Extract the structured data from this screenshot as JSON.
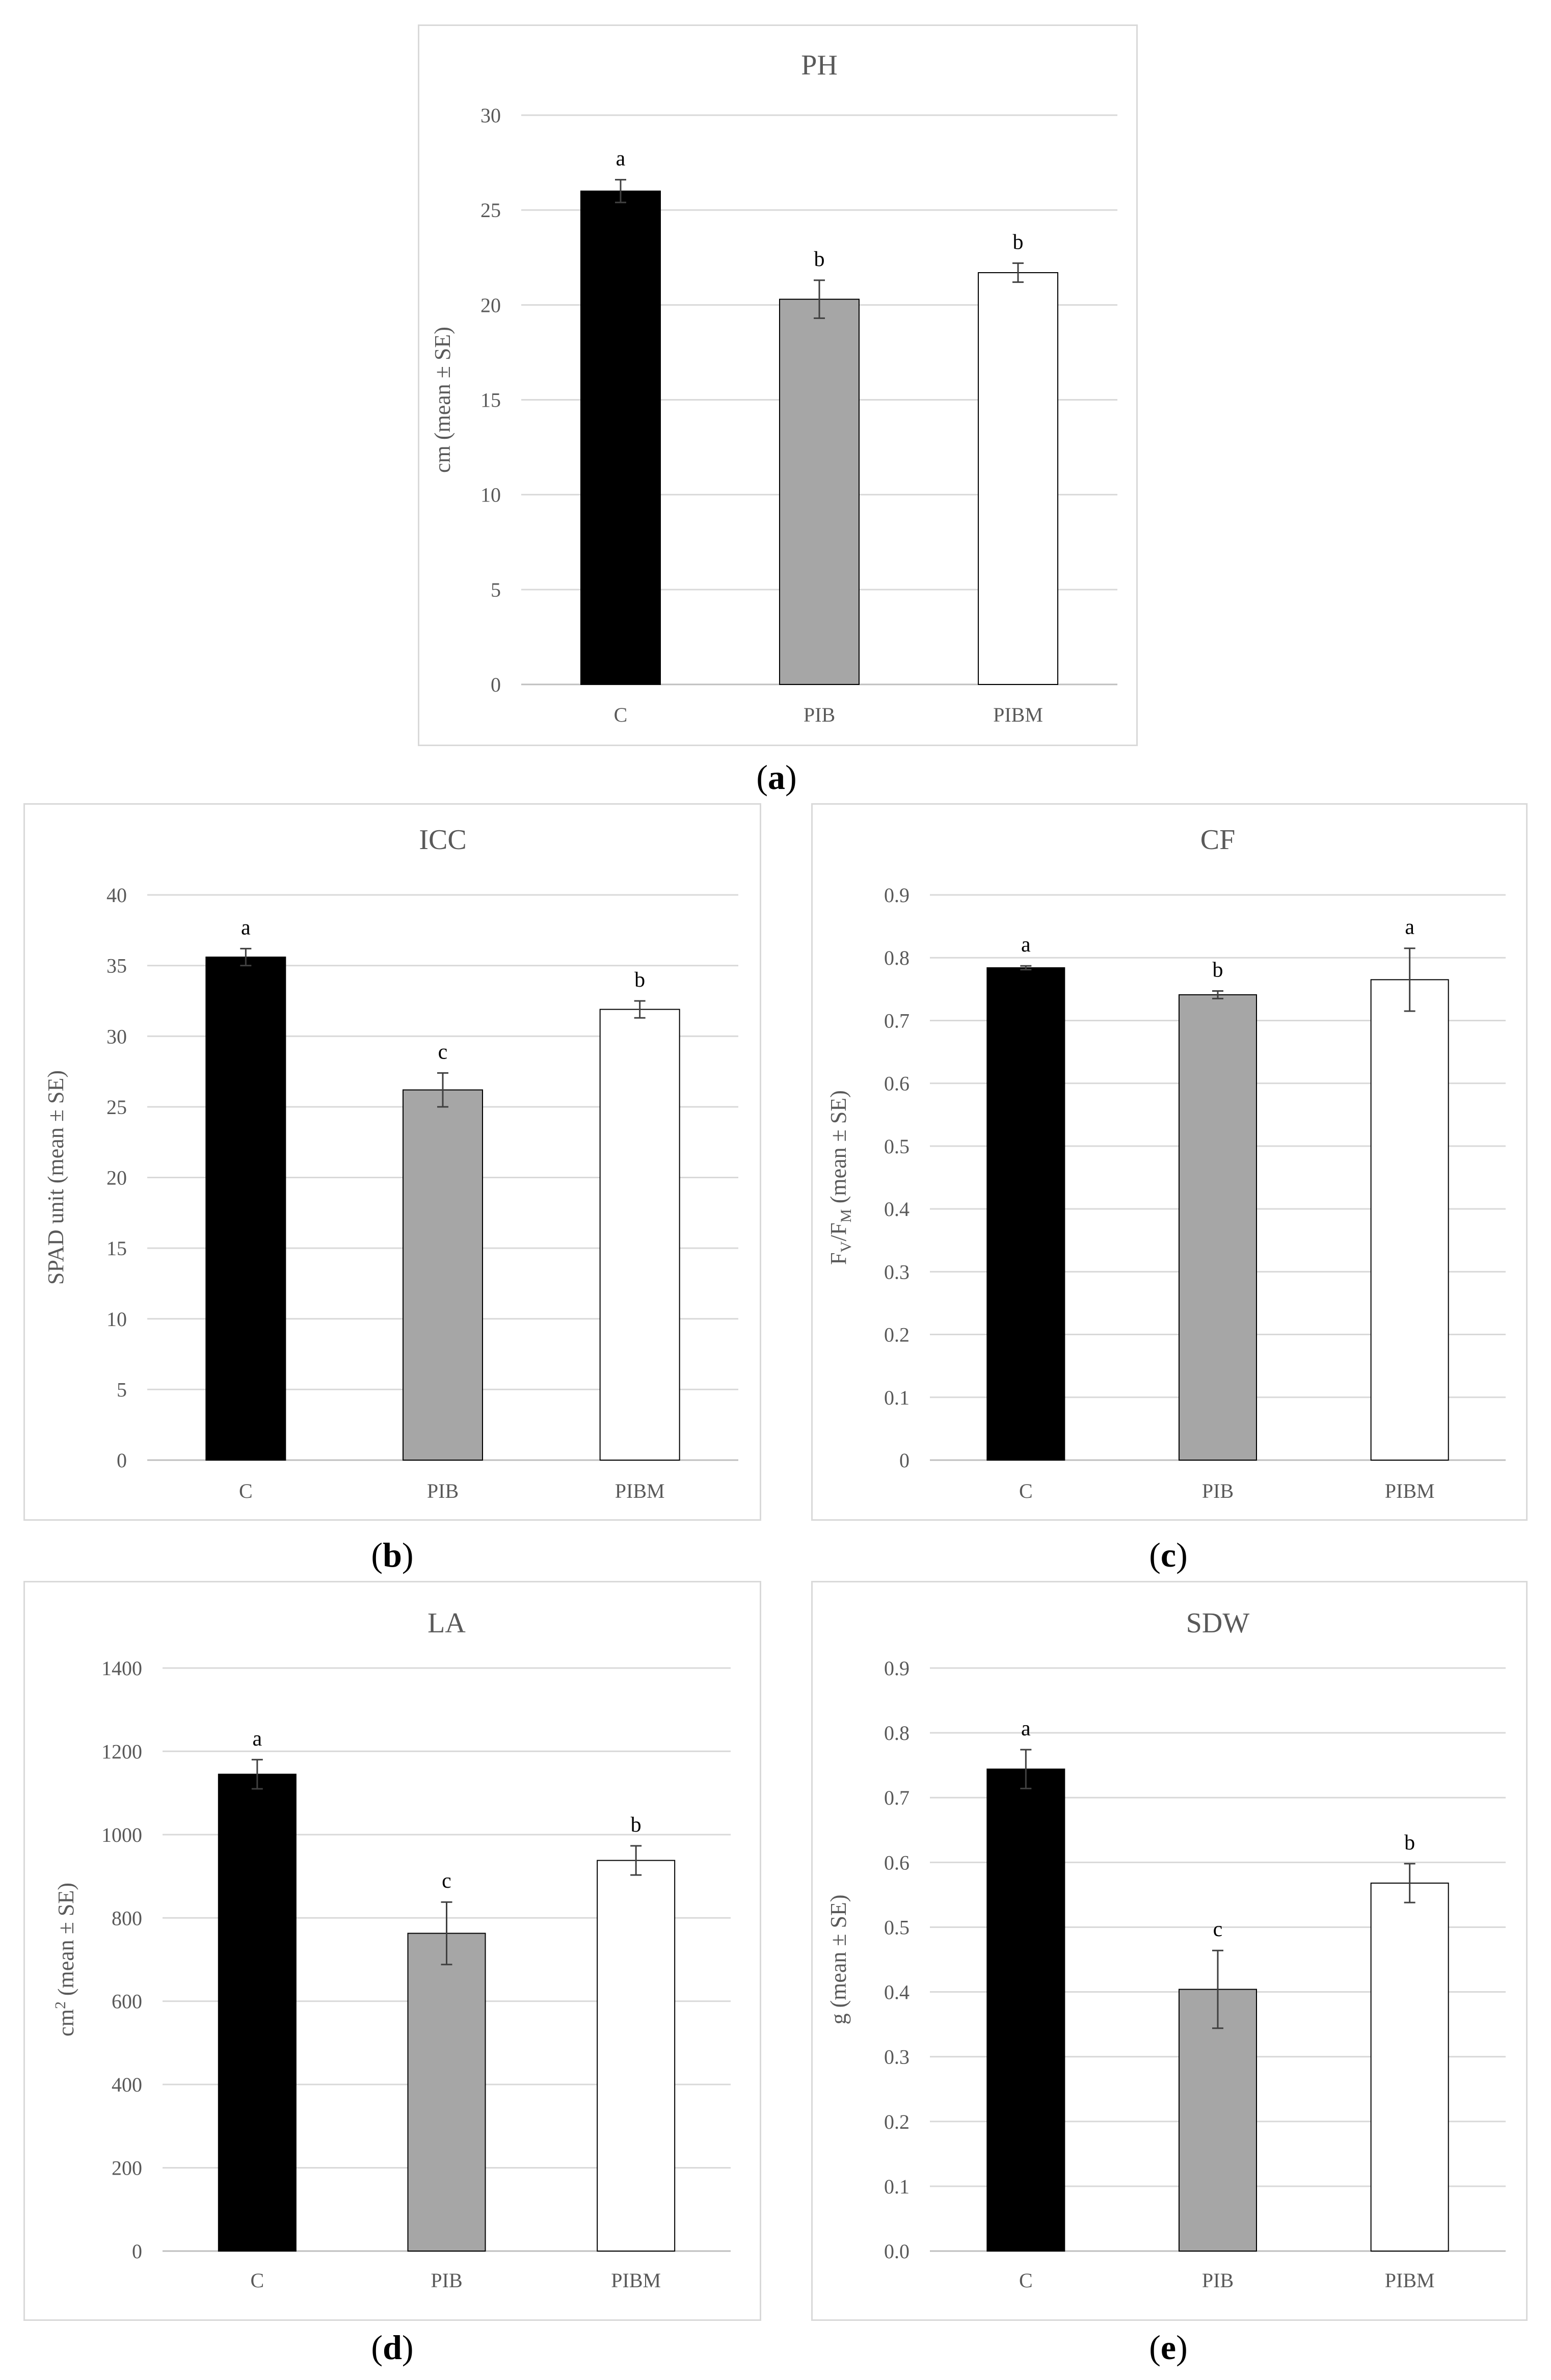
{
  "chart_data": [
    {
      "id": "a",
      "type": "bar",
      "title": "PH",
      "ylabel": "cm (mean ± SE)",
      "categories": [
        "C",
        "PIB",
        "PIBM"
      ],
      "values": [
        26.0,
        20.3,
        21.7
      ],
      "errors": [
        0.6,
        1.0,
        0.5
      ],
      "letters": [
        "a",
        "b",
        "b"
      ],
      "ylim": [
        0,
        30
      ],
      "yticks": [
        0,
        5,
        10,
        15,
        20,
        25,
        30
      ],
      "ytick_labels": [
        "0",
        "5",
        "10",
        "15",
        "20",
        "25",
        "30"
      ],
      "colors": [
        "#000000",
        "#a6a6a6",
        "#ffffff"
      ],
      "grid": true,
      "caption": "a"
    },
    {
      "id": "b",
      "type": "bar",
      "title": "ICC",
      "ylabel": "SPAD unit (mean ± SE)",
      "categories": [
        "C",
        "PIB",
        "PIBM"
      ],
      "values": [
        35.6,
        26.2,
        31.9
      ],
      "errors": [
        0.6,
        1.2,
        0.6
      ],
      "letters": [
        "a",
        "c",
        "b"
      ],
      "ylim": [
        0,
        40
      ],
      "yticks": [
        0,
        5,
        10,
        15,
        20,
        25,
        30,
        35,
        40
      ],
      "ytick_labels": [
        "0",
        "5",
        "10",
        "15",
        "20",
        "25",
        "30",
        "35",
        "40"
      ],
      "colors": [
        "#000000",
        "#a6a6a6",
        "#ffffff"
      ],
      "grid": true,
      "caption": "b"
    },
    {
      "id": "c",
      "type": "bar",
      "title": "CF",
      "ylabel_parts": [
        "F",
        "V",
        "/F",
        "M",
        " (mean ± SE)"
      ],
      "categories": [
        "C",
        "PIB",
        "PIBM"
      ],
      "values": [
        0.784,
        0.741,
        0.765
      ],
      "errors": [
        0.003,
        0.006,
        0.05
      ],
      "letters": [
        "a",
        "b",
        "a"
      ],
      "ylim": [
        0,
        0.9
      ],
      "yticks": [
        0,
        0.1,
        0.2,
        0.3,
        0.4,
        0.5,
        0.6,
        0.7,
        0.8,
        0.9
      ],
      "ytick_labels": [
        "0",
        "0.1",
        "0.2",
        "0.3",
        "0.4",
        "0.5",
        "0.6",
        "0.7",
        "0.8",
        "0.9"
      ],
      "colors": [
        "#000000",
        "#a6a6a6",
        "#ffffff"
      ],
      "grid": true,
      "caption": "c"
    },
    {
      "id": "d",
      "type": "bar",
      "title": "LA",
      "ylabel_parts": [
        "cm",
        "2",
        " (mean ± SE)"
      ],
      "categories": [
        "C",
        "PIB",
        "PIBM"
      ],
      "values": [
        1145,
        763,
        938
      ],
      "errors": [
        35,
        75,
        35
      ],
      "letters": [
        "a",
        "c",
        "b"
      ],
      "ylim": [
        0,
        1400
      ],
      "yticks": [
        0,
        200,
        400,
        600,
        800,
        1000,
        1200,
        1400
      ],
      "ytick_labels": [
        "0",
        "200",
        "400",
        "600",
        "800",
        "1000",
        "1200",
        "1400"
      ],
      "colors": [
        "#000000",
        "#a6a6a6",
        "#ffffff"
      ],
      "grid": true,
      "caption": "d"
    },
    {
      "id": "e",
      "type": "bar",
      "title": "SDW",
      "ylabel": "g (mean ± SE)",
      "categories": [
        "C",
        "PIB",
        "PIBM"
      ],
      "values": [
        0.744,
        0.404,
        0.568
      ],
      "errors": [
        0.03,
        0.06,
        0.03
      ],
      "letters": [
        "a",
        "c",
        "b"
      ],
      "ylim": [
        0,
        0.9
      ],
      "yticks": [
        0,
        0.1,
        0.2,
        0.3,
        0.4,
        0.5,
        0.6,
        0.7,
        0.8,
        0.9
      ],
      "ytick_labels": [
        "0.0",
        "0.1",
        "0.2",
        "0.3",
        "0.4",
        "0.5",
        "0.6",
        "0.7",
        "0.8",
        "0.9"
      ],
      "colors": [
        "#000000",
        "#a6a6a6",
        "#ffffff"
      ],
      "grid": true,
      "caption": "e"
    }
  ],
  "captions": [
    "a",
    "b",
    "c",
    "d",
    "e"
  ]
}
